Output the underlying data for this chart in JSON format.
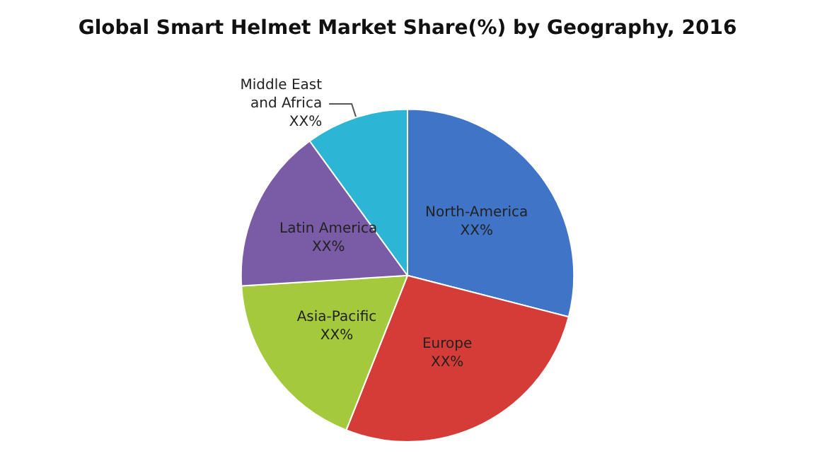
{
  "chart_data": {
    "type": "pie",
    "title": "Global Smart Helmet Market Share(%) by Geography, 2016",
    "categories": [
      "North-America",
      "Europe",
      "Asia-Pacific",
      "Latin America",
      "Middle East and Africa"
    ],
    "values": [
      29,
      27,
      18,
      16,
      10
    ],
    "colors": [
      "#3f74c6",
      "#d63c37",
      "#a4c93c",
      "#7a5ba6",
      "#2cb5d4"
    ],
    "value_labels": [
      "XX%",
      "XX%",
      "XX%",
      "XX%",
      "XX%"
    ],
    "legend": false
  }
}
